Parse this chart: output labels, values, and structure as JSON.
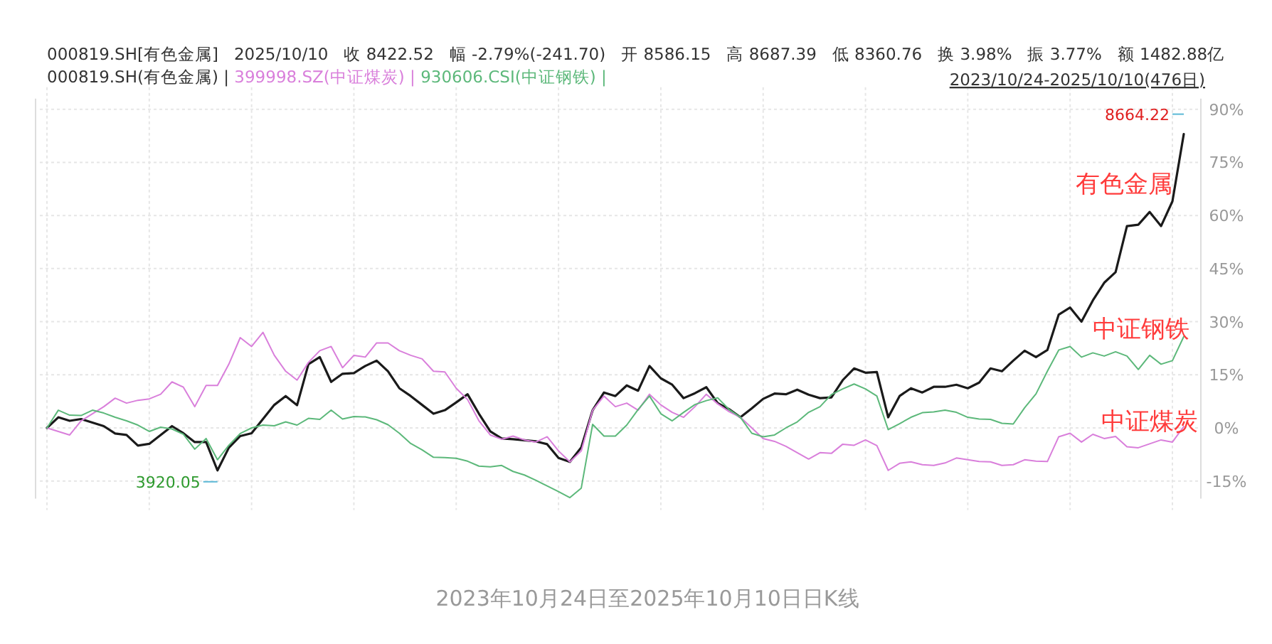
{
  "chart_data": {
    "type": "line",
    "categories": [
      null,
      null,
      null,
      null,
      null,
      null,
      null,
      null,
      null,
      null,
      null,
      null,
      null,
      null,
      null,
      null,
      null,
      null,
      null,
      null,
      null,
      null,
      null,
      null,
      null,
      null,
      null,
      null,
      null,
      null,
      null,
      null,
      null,
      null,
      null,
      null,
      null,
      null,
      null,
      null,
      null,
      null,
      null,
      null,
      null,
      null,
      null,
      null,
      null,
      null,
      null,
      null,
      null,
      null,
      null,
      null,
      null,
      null,
      null,
      null,
      null,
      null,
      null,
      null,
      null,
      null,
      null,
      null,
      null,
      null,
      null,
      null,
      null,
      null,
      null,
      null,
      null,
      null,
      null,
      null,
      null,
      null,
      null,
      null,
      null,
      null,
      null,
      null,
      null,
      null,
      null,
      null,
      null,
      null,
      null,
      null,
      null,
      null,
      null,
      null,
      null
    ],
    "series": [
      {
        "name": "000819.SH(有色金属) |",
        "color": "#1a1a1a",
        "values": [
          0,
          3,
          2,
          2.5,
          1.5,
          0.5,
          -1.6,
          -2,
          -5,
          -4.5,
          -2,
          0.5,
          -1.5,
          -4,
          -4,
          -12,
          -5.6,
          -2.3,
          -1.5,
          2.5,
          6.5,
          9,
          6.4,
          18,
          20,
          13,
          15.3,
          15.5,
          17.5,
          19,
          16,
          11.2,
          9,
          6.5,
          4,
          5,
          7.2,
          9.5,
          4,
          -1,
          -3,
          -3.2,
          -3.5,
          -3.8,
          -4.6,
          -8.5,
          -9.6,
          -5.5,
          5,
          10,
          9,
          12,
          10.5,
          17.5,
          14,
          12.2,
          8.4,
          9.8,
          11.5,
          7,
          5.3,
          3,
          5.5,
          8.2,
          9.7,
          9.5,
          10.8,
          9.4,
          8.4,
          8.6,
          13.5,
          16.8,
          15.6,
          15.8,
          3,
          9,
          11.2,
          10,
          11.6,
          11.6,
          12.2,
          11.2,
          12.8,
          16.8,
          16,
          19,
          21.8,
          20,
          22,
          32,
          34,
          30,
          36,
          41,
          44,
          57,
          57.4,
          61,
          57,
          64,
          83
        ]
      },
      {
        "name": "399998.SZ(中证煤炭) |",
        "color": "#d97fdb",
        "values": [
          0,
          -1,
          -2,
          2,
          4,
          6,
          8.4,
          7,
          7.8,
          8.2,
          9.5,
          13,
          11.5,
          6,
          12,
          12,
          18,
          25.5,
          23,
          27,
          20.5,
          16,
          13.5,
          18.5,
          21.8,
          23,
          17,
          20.5,
          20,
          24,
          24,
          21.8,
          20.5,
          19.5,
          16,
          15.8,
          11.2,
          8,
          2,
          -2,
          -3.2,
          -2.3,
          -3.4,
          -4,
          -2.5,
          -6.5,
          -9.6,
          -6.5,
          5,
          9,
          6,
          7,
          5,
          9.5,
          6.5,
          4.4,
          3,
          6,
          9.5,
          6.8,
          4.6,
          3,
          0,
          -3,
          -3.8,
          -5.2,
          -7,
          -8.8,
          -7,
          -7.2,
          -4.6,
          -4.9,
          -3.4,
          -5,
          -12,
          -10,
          -9.6,
          -10.4,
          -10.6,
          -9.9,
          -8.5,
          -9,
          -9.5,
          -9.6,
          -10.6,
          -10.4,
          -9,
          -9.4,
          -9.5,
          -2.5,
          -1.5,
          -4,
          -1.8,
          -3,
          -2.4,
          -5.3,
          -5.6,
          -4.5,
          -3.4,
          -4,
          0.4
        ]
      },
      {
        "name": "930606.CSI(中证钢铁) |",
        "color": "#5cb87a",
        "values": [
          0,
          5,
          3.6,
          3.5,
          5,
          4.2,
          3,
          2,
          0.8,
          -1,
          0.2,
          -0.3,
          -1.8,
          -6,
          -3,
          -9,
          -4.9,
          -1.6,
          0,
          0.8,
          0.6,
          1.7,
          0.8,
          2.7,
          2.4,
          5,
          2.5,
          3.2,
          3.1,
          2.3,
          0.9,
          -1.5,
          -4.4,
          -6.2,
          -8.3,
          -8.4,
          -8.6,
          -9.4,
          -10.8,
          -11,
          -10.6,
          -12.3,
          -13.3,
          -14.8,
          -16.4,
          -18,
          -19.7,
          -17,
          1,
          -2.3,
          -2.3,
          0.8,
          5.2,
          9,
          4,
          2,
          4.4,
          6.6,
          7.7,
          8.5,
          5.2,
          3,
          -1.5,
          -2.5,
          -2,
          0,
          1.7,
          4.4,
          6,
          9.4,
          11,
          12.4,
          11,
          9,
          -0.5,
          1.2,
          3,
          4.3,
          4.5,
          5,
          4.4,
          3,
          2.5,
          2.4,
          1.3,
          1.1,
          5.7,
          9.6,
          16,
          22,
          23,
          20,
          21.2,
          20.3,
          21.5,
          20.3,
          16.5,
          20.5,
          18,
          19,
          25.8
        ]
      }
    ],
    "ylim": [
      -20,
      93
    ],
    "yticks": [
      {
        "value": 90,
        "label": "90%"
      },
      {
        "value": 75,
        "label": "75%"
      },
      {
        "value": 60,
        "label": "60%"
      },
      {
        "value": 45,
        "label": "45%"
      },
      {
        "value": 30,
        "label": "30%"
      },
      {
        "value": 15,
        "label": "15%"
      },
      {
        "value": 0,
        "label": "0%"
      },
      {
        "value": -15,
        "label": "-15%"
      }
    ],
    "grid": true,
    "tick_labels": "y",
    "annotations": [
      "000819.SH[有色金属]   2025/10/10   收 8422.52   幅 -2.79%(-241.70)   开 8586.15   高 8687.39   低 8360.76   换 3.98%   振 3.77%   额 1482.88亿",
      "2023/10/24-2025/10/10(476日)",
      "8664.22",
      "3920.05",
      "有色金属",
      "中证钢铁",
      "中证煤炭",
      "2023年10月24日至2025年10月10日日K线"
    ]
  }
}
